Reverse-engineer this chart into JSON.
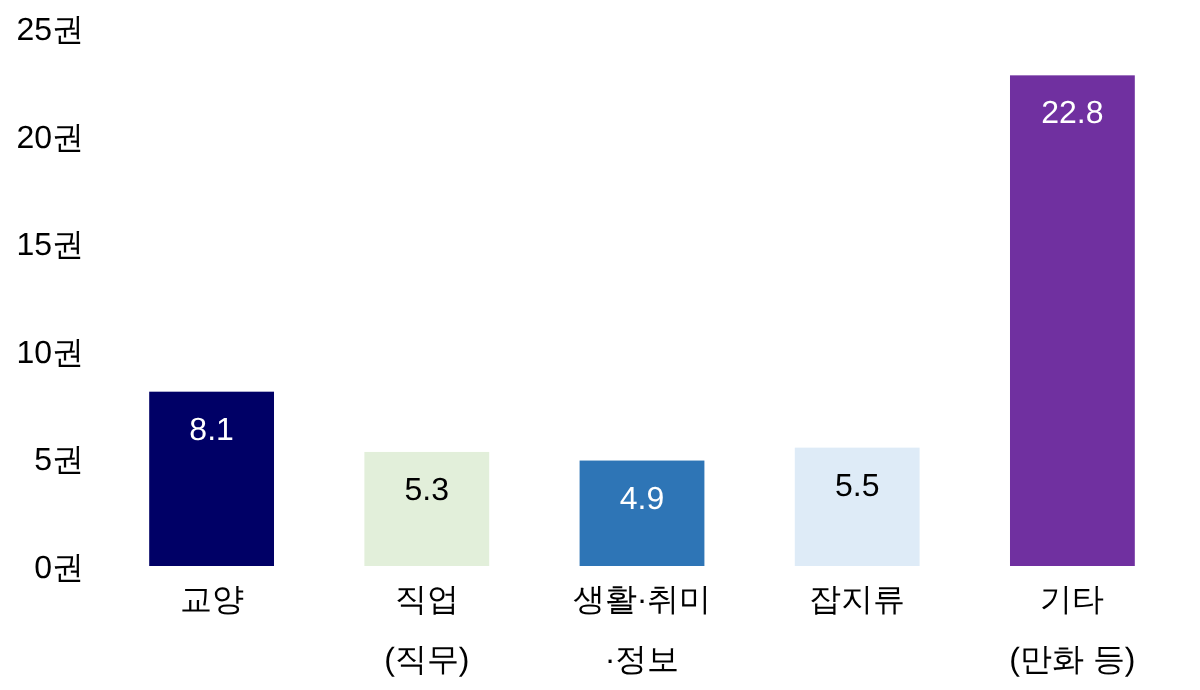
{
  "chart_data": {
    "type": "bar",
    "categories": [
      "교양",
      "직업\n(직무)",
      "생활·취미\n·정보",
      "잡지류",
      "기타\n(만화 등)"
    ],
    "values": [
      8.1,
      5.3,
      4.9,
      5.5,
      22.8
    ],
    "colors": [
      "#000066",
      "#e2efda",
      "#2e75b6",
      "#deebf7",
      "#7030a0"
    ],
    "ylim": [
      0,
      25
    ],
    "yticks": [
      {
        "value": 0,
        "label": "0권"
      },
      {
        "value": 5,
        "label": "5권"
      },
      {
        "value": 10,
        "label": "10권"
      },
      {
        "value": 15,
        "label": "15권"
      },
      {
        "value": 20,
        "label": "20권"
      },
      {
        "value": 25,
        "label": "25권"
      }
    ],
    "data_labels": true,
    "grid": false
  }
}
